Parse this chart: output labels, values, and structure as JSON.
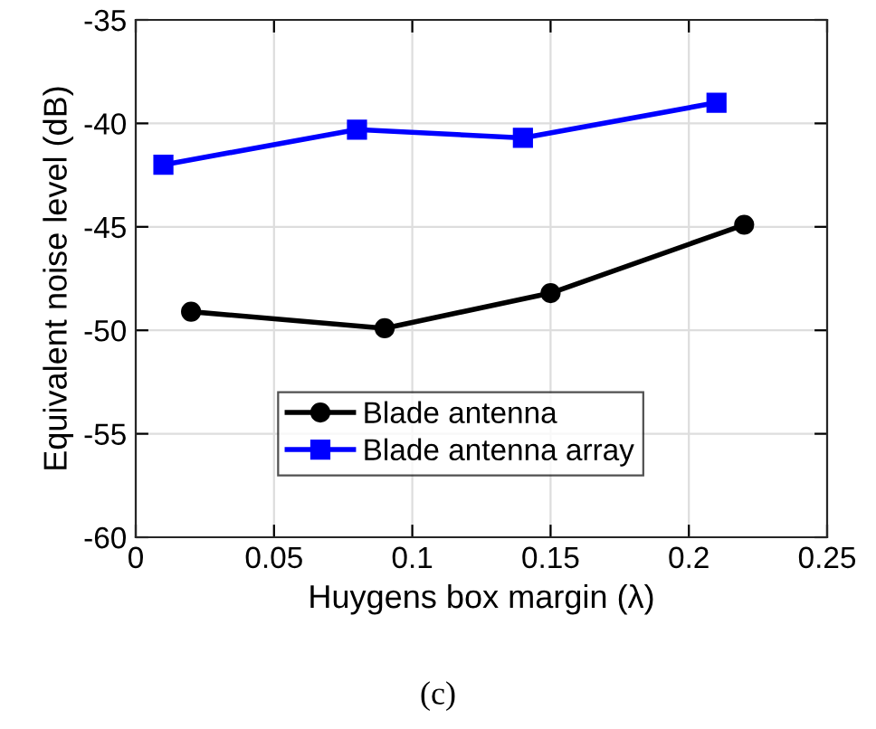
{
  "chart_data": {
    "type": "line",
    "xlabel": "Huygens box margin (λ)",
    "ylabel": "Equivalent noise level (dB)",
    "annotations": [
      "(c)"
    ],
    "series": [
      {
        "name": "Blade antenna",
        "color": "#000000",
        "marker": "circle",
        "x": [
          0.02,
          0.09,
          0.15,
          0.22
        ],
        "values": [
          -49.1,
          -49.9,
          -48.2,
          -44.9
        ]
      },
      {
        "name": "Blade antenna array",
        "color": "#0000ff",
        "marker": "square",
        "x": [
          0.01,
          0.08,
          0.14,
          0.21
        ],
        "values": [
          -42.0,
          -40.3,
          -40.7,
          -39.0
        ]
      }
    ],
    "xlim": [
      0,
      0.25
    ],
    "xticks": [
      0,
      0.05,
      0.1,
      0.15,
      0.2,
      0.25
    ],
    "ylim": [
      -60,
      -35
    ],
    "yticks": [
      -60,
      -55,
      -50,
      -45,
      -40,
      -35
    ],
    "grid": true,
    "legend": "center",
    "line_style": "solid"
  }
}
